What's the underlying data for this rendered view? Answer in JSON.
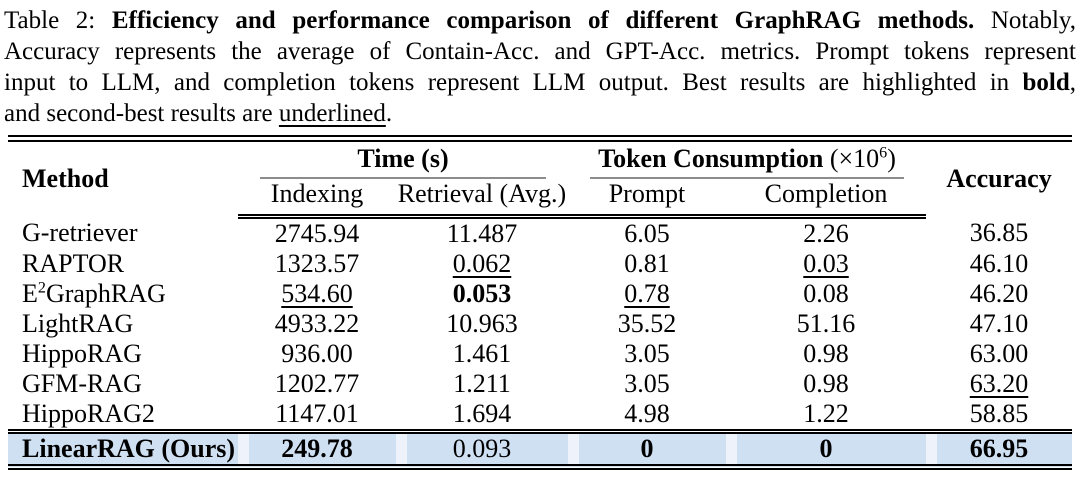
{
  "caption": {
    "line1_prefix": "Table 2: ",
    "line1_bold": "Efficiency and performance comparison of different GraphRAG methods.",
    "line1_suffix": " Notably,",
    "line2": "Accuracy represents the average of Contain-Acc. and GPT-Acc. metrics. Prompt tokens represent",
    "line3_prefix": "input to LLM, and completion tokens represent LLM output. Best results are highlighted in ",
    "line3_bold": "bold",
    "line3_suffix": ",",
    "line4_prefix": "and second-best results are ",
    "line4_underlined": "underlined",
    "line4_suffix": "."
  },
  "table": {
    "headers": {
      "method": "Method",
      "time_group": "Time (s)",
      "token_group": "Token Consumption ",
      "token_unit_prefix": "(×10",
      "token_unit_sup": "6",
      "token_unit_suffix": ")",
      "accuracy": "Accuracy",
      "sub": [
        "Indexing",
        "Retrieval (Avg.)",
        "Prompt",
        "Completion"
      ]
    },
    "column_keys": [
      "indexing",
      "retrieval-avg",
      "prompt",
      "completion",
      "accuracy"
    ],
    "rows": [
      {
        "method": {
          "pre": "G-retriever",
          "sup": "",
          "post": ""
        },
        "cells": [
          {
            "v": "2745.94",
            "style": ""
          },
          {
            "v": "11.487",
            "style": ""
          },
          {
            "v": "6.05",
            "style": ""
          },
          {
            "v": "2.26",
            "style": ""
          },
          {
            "v": "36.85",
            "style": ""
          }
        ]
      },
      {
        "method": {
          "pre": "RAPTOR",
          "sup": "",
          "post": ""
        },
        "cells": [
          {
            "v": "1323.57",
            "style": ""
          },
          {
            "v": "0.062",
            "style": "underline"
          },
          {
            "v": "0.81",
            "style": ""
          },
          {
            "v": "0.03",
            "style": "underline"
          },
          {
            "v": "46.10",
            "style": ""
          }
        ]
      },
      {
        "method": {
          "pre": "E",
          "sup": "2",
          "post": "GraphRAG"
        },
        "cells": [
          {
            "v": "534.60",
            "style": "underline"
          },
          {
            "v": "0.053",
            "style": "bold"
          },
          {
            "v": "0.78",
            "style": "underline"
          },
          {
            "v": "0.08",
            "style": ""
          },
          {
            "v": "46.20",
            "style": ""
          }
        ]
      },
      {
        "method": {
          "pre": "LightRAG",
          "sup": "",
          "post": ""
        },
        "cells": [
          {
            "v": "4933.22",
            "style": ""
          },
          {
            "v": "10.963",
            "style": ""
          },
          {
            "v": "35.52",
            "style": ""
          },
          {
            "v": "51.16",
            "style": ""
          },
          {
            "v": "47.10",
            "style": ""
          }
        ]
      },
      {
        "method": {
          "pre": "HippoRAG",
          "sup": "",
          "post": ""
        },
        "cells": [
          {
            "v": "936.00",
            "style": ""
          },
          {
            "v": "1.461",
            "style": ""
          },
          {
            "v": "3.05",
            "style": ""
          },
          {
            "v": "0.98",
            "style": ""
          },
          {
            "v": "63.00",
            "style": ""
          }
        ]
      },
      {
        "method": {
          "pre": "GFM-RAG",
          "sup": "",
          "post": ""
        },
        "cells": [
          {
            "v": "1202.77",
            "style": ""
          },
          {
            "v": "1.211",
            "style": ""
          },
          {
            "v": "3.05",
            "style": ""
          },
          {
            "v": "0.98",
            "style": ""
          },
          {
            "v": "63.20",
            "style": "underline"
          }
        ]
      },
      {
        "method": {
          "pre": "HippoRAG2",
          "sup": "",
          "post": ""
        },
        "cells": [
          {
            "v": "1147.01",
            "style": ""
          },
          {
            "v": "1.694",
            "style": ""
          },
          {
            "v": "4.98",
            "style": ""
          },
          {
            "v": "1.22",
            "style": ""
          },
          {
            "v": "58.85",
            "style": ""
          }
        ]
      }
    ],
    "highlight_row": {
      "method": {
        "pre": "LinearRAG (Ours)",
        "sup": "",
        "post": ""
      },
      "cells": [
        {
          "v": "249.78",
          "style": "bold"
        },
        {
          "v": "0.093",
          "style": ""
        },
        {
          "v": "0",
          "style": "bold"
        },
        {
          "v": "0",
          "style": "bold"
        },
        {
          "v": "66.95",
          "style": "bold"
        }
      ]
    },
    "highlight_color": "#cfe0f3",
    "rule_gray": "#8c8c8c"
  }
}
